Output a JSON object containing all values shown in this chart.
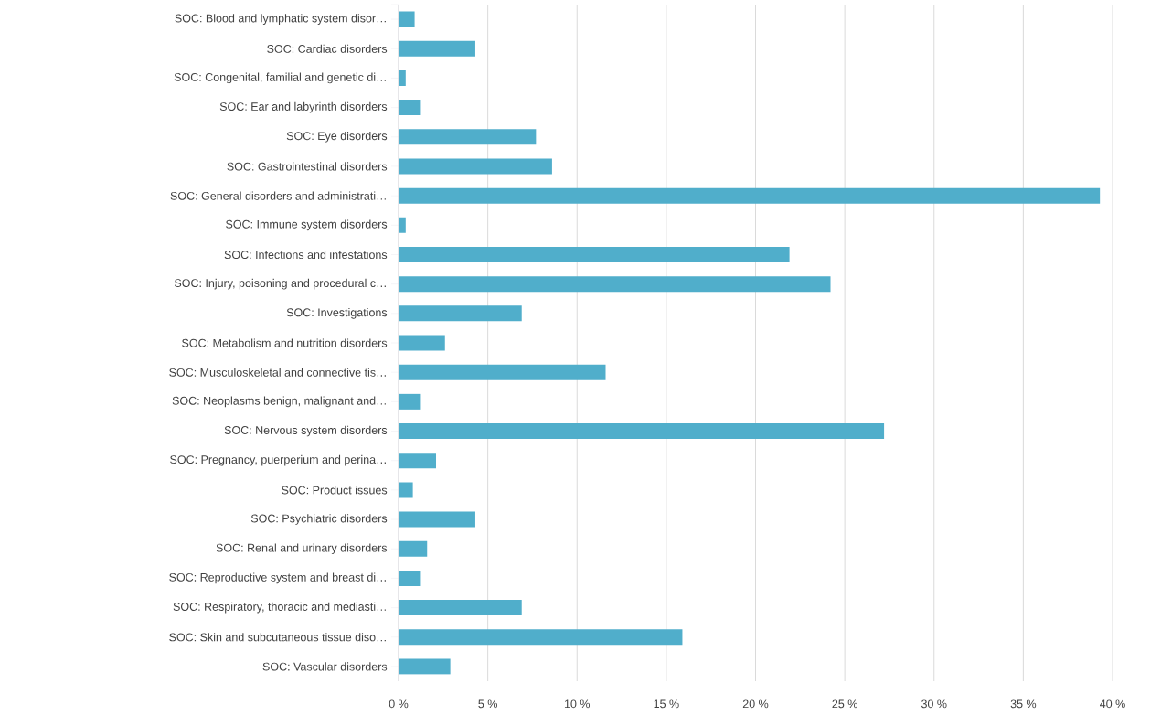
{
  "chart_data": {
    "type": "bar",
    "orientation": "horizontal",
    "categories": [
      "SOC: Blood and lymphatic system disor…",
      "SOC: Cardiac disorders",
      "SOC: Congenital, familial and genetic di…",
      "SOC: Ear and labyrinth disorders",
      "SOC: Eye disorders",
      "SOC: Gastrointestinal disorders",
      "SOC: General disorders and administrati…",
      "SOC: Immune system disorders",
      "SOC: Infections and infestations",
      "SOC: Injury, poisoning and procedural c…",
      "SOC: Investigations",
      "SOC: Metabolism and nutrition disorders",
      "SOC: Musculoskeletal and connective tis…",
      "SOC: Neoplasms benign, malignant and…",
      "SOC: Nervous system disorders",
      "SOC: Pregnancy, puerperium and perina…",
      "SOC: Product issues",
      "SOC: Psychiatric disorders",
      "SOC: Renal and urinary disorders",
      "SOC: Reproductive system and breast di…",
      "SOC: Respiratory, thoracic and mediasti…",
      "SOC: Skin and subcutaneous tissue diso…",
      "SOC: Vascular disorders"
    ],
    "values": [
      0.9,
      4.3,
      0.4,
      1.2,
      7.7,
      8.6,
      39.3,
      0.4,
      21.9,
      24.2,
      6.9,
      2.6,
      11.6,
      1.2,
      27.2,
      2.1,
      0.8,
      4.3,
      1.6,
      1.2,
      6.9,
      15.9,
      2.9
    ],
    "color": "#50aecb",
    "xlim": [
      0,
      40
    ],
    "xticks": [
      {
        "value": 0,
        "label": "0 %"
      },
      {
        "value": 5,
        "label": "5 %"
      },
      {
        "value": 10,
        "label": "10 %"
      },
      {
        "value": 15,
        "label": "15 %"
      },
      {
        "value": 20,
        "label": "20 %"
      },
      {
        "value": 25,
        "label": "25 %"
      },
      {
        "value": 30,
        "label": "30 %"
      },
      {
        "value": 35,
        "label": "35 %"
      },
      {
        "value": 40,
        "label": "40 %"
      }
    ],
    "grid": "x"
  }
}
